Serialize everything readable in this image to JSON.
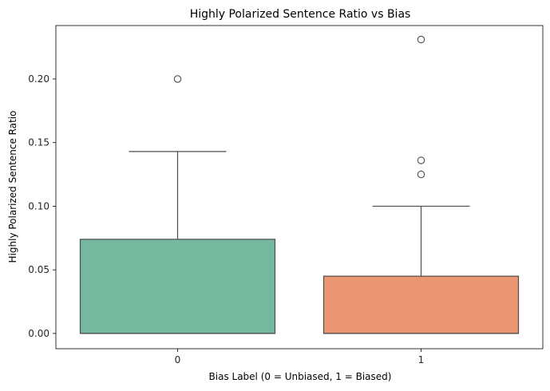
{
  "chart_data": {
    "type": "box",
    "title": "Highly Polarized Sentence Ratio vs Bias",
    "xlabel": "Bias Label (0 = Unbiased, 1 = Biased)",
    "ylabel": "Highly Polarized Sentence Ratio",
    "categories": [
      "0",
      "1"
    ],
    "ylim": [
      -0.012,
      0.242
    ],
    "yticks": [
      "0.00",
      "0.05",
      "0.10",
      "0.15",
      "0.20"
    ],
    "yticks_values": [
      0.0,
      0.05,
      0.1,
      0.15,
      0.2
    ],
    "grid": false,
    "boxes": [
      {
        "category": "0",
        "color": "#76b7a0",
        "whisker_low": 0.0,
        "q1": 0.0,
        "median": 0.0,
        "q3": 0.074,
        "whisker_high": 0.143,
        "outliers": [
          0.2
        ]
      },
      {
        "category": "1",
        "color": "#ea9673",
        "whisker_low": 0.0,
        "q1": 0.0,
        "median": 0.0,
        "q3": 0.045,
        "whisker_high": 0.1,
        "outliers": [
          0.125,
          0.136,
          0.231
        ]
      }
    ]
  }
}
